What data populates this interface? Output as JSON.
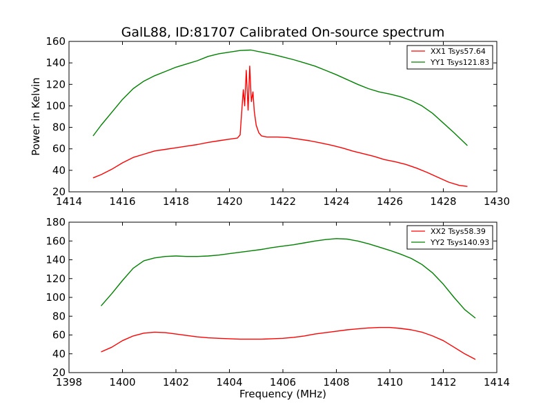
{
  "chart_data": [
    {
      "type": "line",
      "title": "GalL88, ID:81707 Calibrated On-source spectrum",
      "xlabel": "",
      "ylabel": "Power in Kelvin",
      "xlim": [
        1414,
        1430
      ],
      "ylim": [
        20,
        160
      ],
      "xticks": [
        1414,
        1416,
        1418,
        1420,
        1422,
        1424,
        1426,
        1428,
        1430
      ],
      "yticks": [
        20,
        40,
        60,
        80,
        100,
        120,
        140,
        160
      ],
      "grid": false,
      "legend_position": "top-right",
      "series": [
        {
          "name": "XX1 Tsys57.64",
          "color": "#ff0000",
          "x": [
            1414.9,
            1415.2,
            1415.6,
            1416.0,
            1416.4,
            1416.8,
            1417.2,
            1417.6,
            1418.0,
            1418.4,
            1418.8,
            1419.2,
            1419.6,
            1420.0,
            1420.3,
            1420.4,
            1420.47,
            1420.52,
            1420.57,
            1420.63,
            1420.7,
            1420.76,
            1420.82,
            1420.88,
            1420.93,
            1421.0,
            1421.1,
            1421.2,
            1421.4,
            1421.8,
            1422.2,
            1422.6,
            1423.0,
            1423.4,
            1423.8,
            1424.2,
            1424.6,
            1425.0,
            1425.4,
            1425.8,
            1426.2,
            1426.6,
            1427.0,
            1427.4,
            1427.8,
            1428.2,
            1428.6,
            1428.9
          ],
          "y": [
            33,
            36,
            41,
            47,
            52,
            55,
            58,
            59.5,
            61,
            62.5,
            64,
            66,
            67.5,
            69,
            70,
            73,
            98,
            115,
            100,
            133,
            96,
            137,
            104,
            113,
            95,
            82,
            75,
            72,
            71,
            71,
            70.5,
            69,
            67.5,
            65.5,
            63.5,
            61,
            58,
            55.5,
            53,
            50,
            48,
            45.5,
            42,
            38,
            33.5,
            29,
            26,
            25
          ]
        }
      ]
    },
    {
      "type": "line",
      "title": "",
      "xlabel": "Frequency (MHz)",
      "ylabel": "",
      "xlim": [
        1398,
        1414
      ],
      "ylim": [
        20,
        180
      ],
      "xticks": [
        1398,
        1400,
        1402,
        1404,
        1406,
        1408,
        1410,
        1412,
        1414
      ],
      "yticks": [
        20,
        40,
        60,
        80,
        100,
        120,
        140,
        160,
        180
      ],
      "grid": false,
      "legend_position": "top-right",
      "series": [
        {
          "name": "XX2 Tsys58.39",
          "color": "#ff0000",
          "x": [
            1399.2,
            1399.6,
            1400.0,
            1400.4,
            1400.8,
            1401.2,
            1401.6,
            1402.0,
            1402.4,
            1402.8,
            1403.2,
            1403.6,
            1404.0,
            1404.4,
            1404.8,
            1405.2,
            1405.6,
            1406.0,
            1406.4,
            1406.8,
            1407.2,
            1407.6,
            1408.0,
            1408.4,
            1408.8,
            1409.2,
            1409.6,
            1410.0,
            1410.4,
            1410.8,
            1411.2,
            1411.6,
            1412.0,
            1412.4,
            1412.8,
            1413.2
          ],
          "y": [
            42,
            47,
            54,
            59,
            62,
            63,
            62.5,
            61,
            59.5,
            58,
            57,
            56.5,
            56,
            55.5,
            55.5,
            55.5,
            56,
            56.5,
            57.5,
            59,
            61,
            62.5,
            64,
            65.5,
            66.5,
            67.5,
            68,
            68,
            67,
            65.5,
            63,
            59,
            54,
            47,
            40,
            34
          ]
        },
        {
          "name": "YY2 Tsys140.93",
          "color": "#008000",
          "x": [
            1399.2,
            1399.6,
            1400.0,
            1400.4,
            1400.8,
            1401.2,
            1401.6,
            1402.0,
            1402.4,
            1402.8,
            1403.2,
            1403.6,
            1404.0,
            1404.4,
            1404.8,
            1405.2,
            1405.6,
            1406.0,
            1406.4,
            1406.8,
            1407.2,
            1407.6,
            1408.0,
            1408.4,
            1408.8,
            1409.2,
            1409.6,
            1410.0,
            1410.4,
            1410.8,
            1411.2,
            1411.6,
            1412.0,
            1412.4,
            1412.8,
            1413.2
          ],
          "y": [
            91,
            104,
            118,
            131,
            139,
            142,
            143.5,
            144,
            143.5,
            143.5,
            144,
            145,
            146.5,
            148,
            149.5,
            151,
            153,
            154.5,
            156,
            158,
            160,
            161.5,
            162.5,
            162,
            160,
            157,
            153.5,
            150,
            146,
            141.5,
            135,
            126,
            114,
            100,
            87,
            78
          ]
        }
      ]
    }
  ],
  "legend_series_top_extra": {
    "name": "YY1 Tsys121.83",
    "color": "#008000",
    "x": [
      1414.9,
      1415.2,
      1415.6,
      1416.0,
      1416.4,
      1416.8,
      1417.2,
      1417.6,
      1418.0,
      1418.4,
      1418.8,
      1419.2,
      1419.6,
      1420.0,
      1420.4,
      1420.8,
      1421.2,
      1421.6,
      1422.0,
      1422.4,
      1422.8,
      1423.2,
      1423.6,
      1424.0,
      1424.4,
      1424.8,
      1425.2,
      1425.6,
      1426.0,
      1426.4,
      1426.8,
      1427.2,
      1427.6,
      1428.0,
      1428.4,
      1428.9
    ],
    "y": [
      72,
      82,
      94,
      106,
      116,
      123,
      128,
      132,
      136,
      139,
      142,
      146,
      148.5,
      150,
      151.5,
      152,
      150,
      148,
      145.5,
      143,
      140,
      137,
      133,
      129,
      124.5,
      120,
      116,
      113,
      111,
      108.5,
      105,
      100,
      93,
      84,
      75,
      63
    ]
  }
}
